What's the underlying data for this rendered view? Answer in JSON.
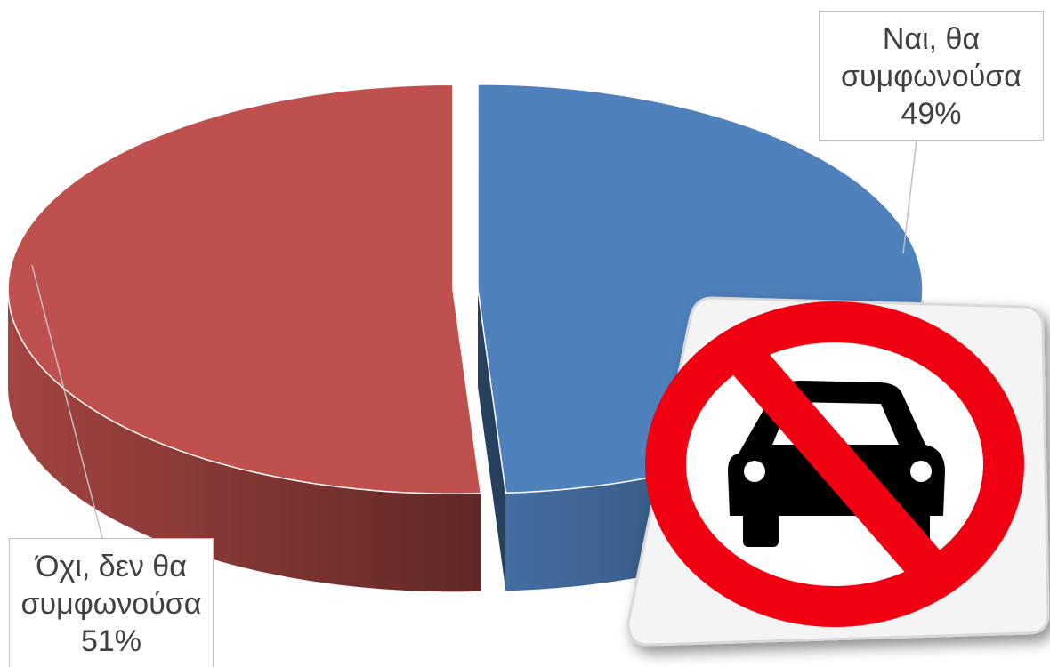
{
  "chart_data": {
    "type": "pie3d",
    "categories": [
      "Ναι, θα συμφωνούσα",
      "Όχι, δεν θα συμφωνούσα"
    ],
    "values": [
      49,
      51
    ],
    "value_labels": [
      "49%",
      "51%"
    ],
    "colors": [
      "#4f81bd",
      "#c0504d"
    ]
  }
}
